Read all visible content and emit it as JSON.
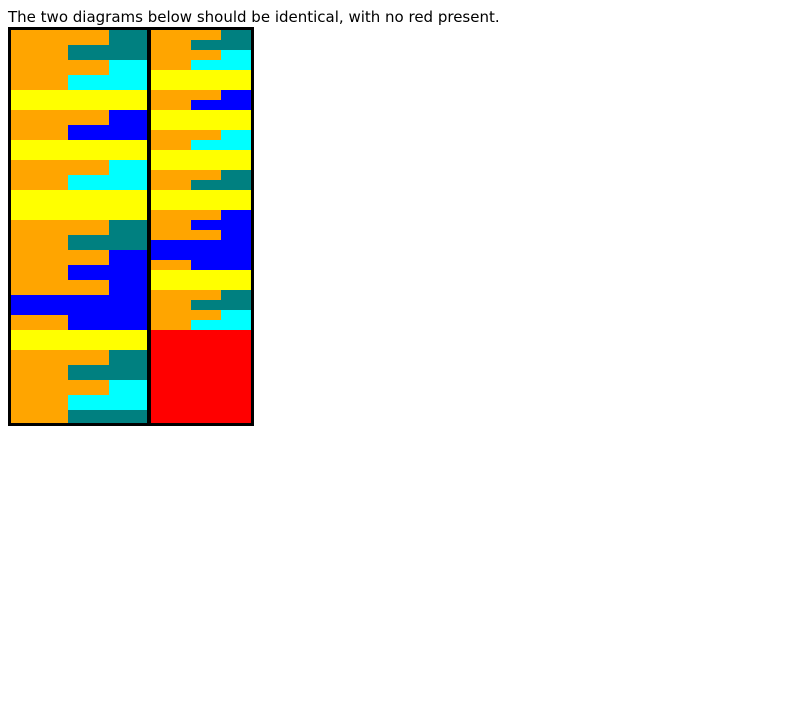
{
  "instructions": "The two diagrams below should be identical, with no red present.",
  "colors": {
    "orange": "#ffa500",
    "teal": "#008080",
    "cyan": "#00ffff",
    "yellow": "#ffff00",
    "blue": "#0000ff",
    "red": "#ff0000",
    "border": "#000000"
  },
  "reference_diagram": {
    "rows": [
      {
        "bg": "teal",
        "bars": [
          {
            "color": "orange",
            "fraction": 0.72
          },
          {
            "color": "orange",
            "fraction": 0.42
          }
        ]
      },
      {
        "bg": "cyan",
        "bars": [
          {
            "color": "orange",
            "fraction": 0.72
          },
          {
            "color": "orange",
            "fraction": 0.42
          }
        ]
      },
      {
        "bg": "yellow",
        "bars": []
      },
      {
        "bg": "blue",
        "bars": [
          {
            "color": "orange",
            "fraction": 0.72
          },
          {
            "color": "orange",
            "fraction": 0.42
          }
        ]
      },
      {
        "bg": "yellow",
        "bars": []
      },
      {
        "bg": "cyan",
        "bars": [
          {
            "color": "orange",
            "fraction": 0.72
          },
          {
            "color": "orange",
            "fraction": 0.42
          }
        ]
      },
      {
        "bg": "yellow",
        "bars": []
      },
      {
        "bg": "teal",
        "bars": [
          {
            "color": "orange",
            "fraction": 0.72
          },
          {
            "color": "orange",
            "fraction": 0.42
          }
        ]
      },
      {
        "bg": "blue",
        "bars": [
          {
            "color": "orange",
            "fraction": 0.72
          },
          {
            "color": "orange",
            "fraction": 0.42
          },
          {
            "color": "orange",
            "fraction": 0.72
          }
        ]
      },
      {
        "bg": "blue",
        "bars": []
      },
      {
        "bg": "blue",
        "bars": [
          {
            "color": "orange",
            "fraction": 0.42
          }
        ]
      },
      {
        "bg": "yellow",
        "bars": []
      },
      {
        "bg": "teal",
        "bars": [
          {
            "color": "orange",
            "fraction": 0.72
          },
          {
            "color": "orange",
            "fraction": 0.42
          }
        ]
      },
      {
        "bg": "cyan",
        "bars": [
          {
            "color": "orange",
            "fraction": 0.72
          },
          {
            "color": "orange",
            "fraction": 0.42
          }
        ]
      },
      {
        "bg": "teal",
        "bars": [
          {
            "color": "orange",
            "fraction": 0.42
          }
        ]
      }
    ]
  },
  "test_diagram": {
    "rows": [
      {
        "bg": "teal",
        "bars": [
          {
            "color": "orange",
            "fraction": 0.7
          },
          {
            "color": "orange",
            "fraction": 0.4
          }
        ]
      },
      {
        "bg": "cyan",
        "bars": [
          {
            "color": "orange",
            "fraction": 0.7
          },
          {
            "color": "orange",
            "fraction": 0.4
          }
        ]
      },
      {
        "bg": "yellow",
        "bars": []
      },
      {
        "bg": "blue",
        "bars": [
          {
            "color": "orange",
            "fraction": 0.7
          },
          {
            "color": "orange",
            "fraction": 0.4
          }
        ]
      },
      {
        "bg": "yellow",
        "bars": []
      },
      {
        "bg": "cyan",
        "bars": [
          {
            "color": "orange",
            "fraction": 0.7
          },
          {
            "color": "orange",
            "fraction": 0.4
          }
        ]
      },
      {
        "bg": "yellow",
        "bars": []
      },
      {
        "bg": "teal",
        "bars": [
          {
            "color": "orange",
            "fraction": 0.7
          },
          {
            "color": "orange",
            "fraction": 0.4
          }
        ]
      },
      {
        "bg": "yellow",
        "bars": []
      },
      {
        "bg": "blue",
        "bars": [
          {
            "color": "orange",
            "fraction": 0.7
          },
          {
            "color": "orange",
            "fraction": 0.4
          },
          {
            "color": "orange",
            "fraction": 0.7
          }
        ]
      },
      {
        "bg": "blue",
        "bars": []
      },
      {
        "bg": "blue",
        "bars": [
          {
            "color": "orange",
            "fraction": 0.4
          }
        ]
      },
      {
        "bg": "yellow",
        "bars": []
      },
      {
        "bg": "teal",
        "bars": [
          {
            "color": "orange",
            "fraction": 0.7
          },
          {
            "color": "orange",
            "fraction": 0.4
          }
        ]
      },
      {
        "bg": "cyan",
        "bars": [
          {
            "color": "orange",
            "fraction": 0.7
          },
          {
            "color": "orange",
            "fraction": 0.4
          }
        ]
      },
      {
        "bg": "teal",
        "bars": [
          {
            "color": "orange",
            "fraction": 0.4
          }
        ]
      },
      {
        "bg": "red",
        "bars": []
      }
    ]
  }
}
